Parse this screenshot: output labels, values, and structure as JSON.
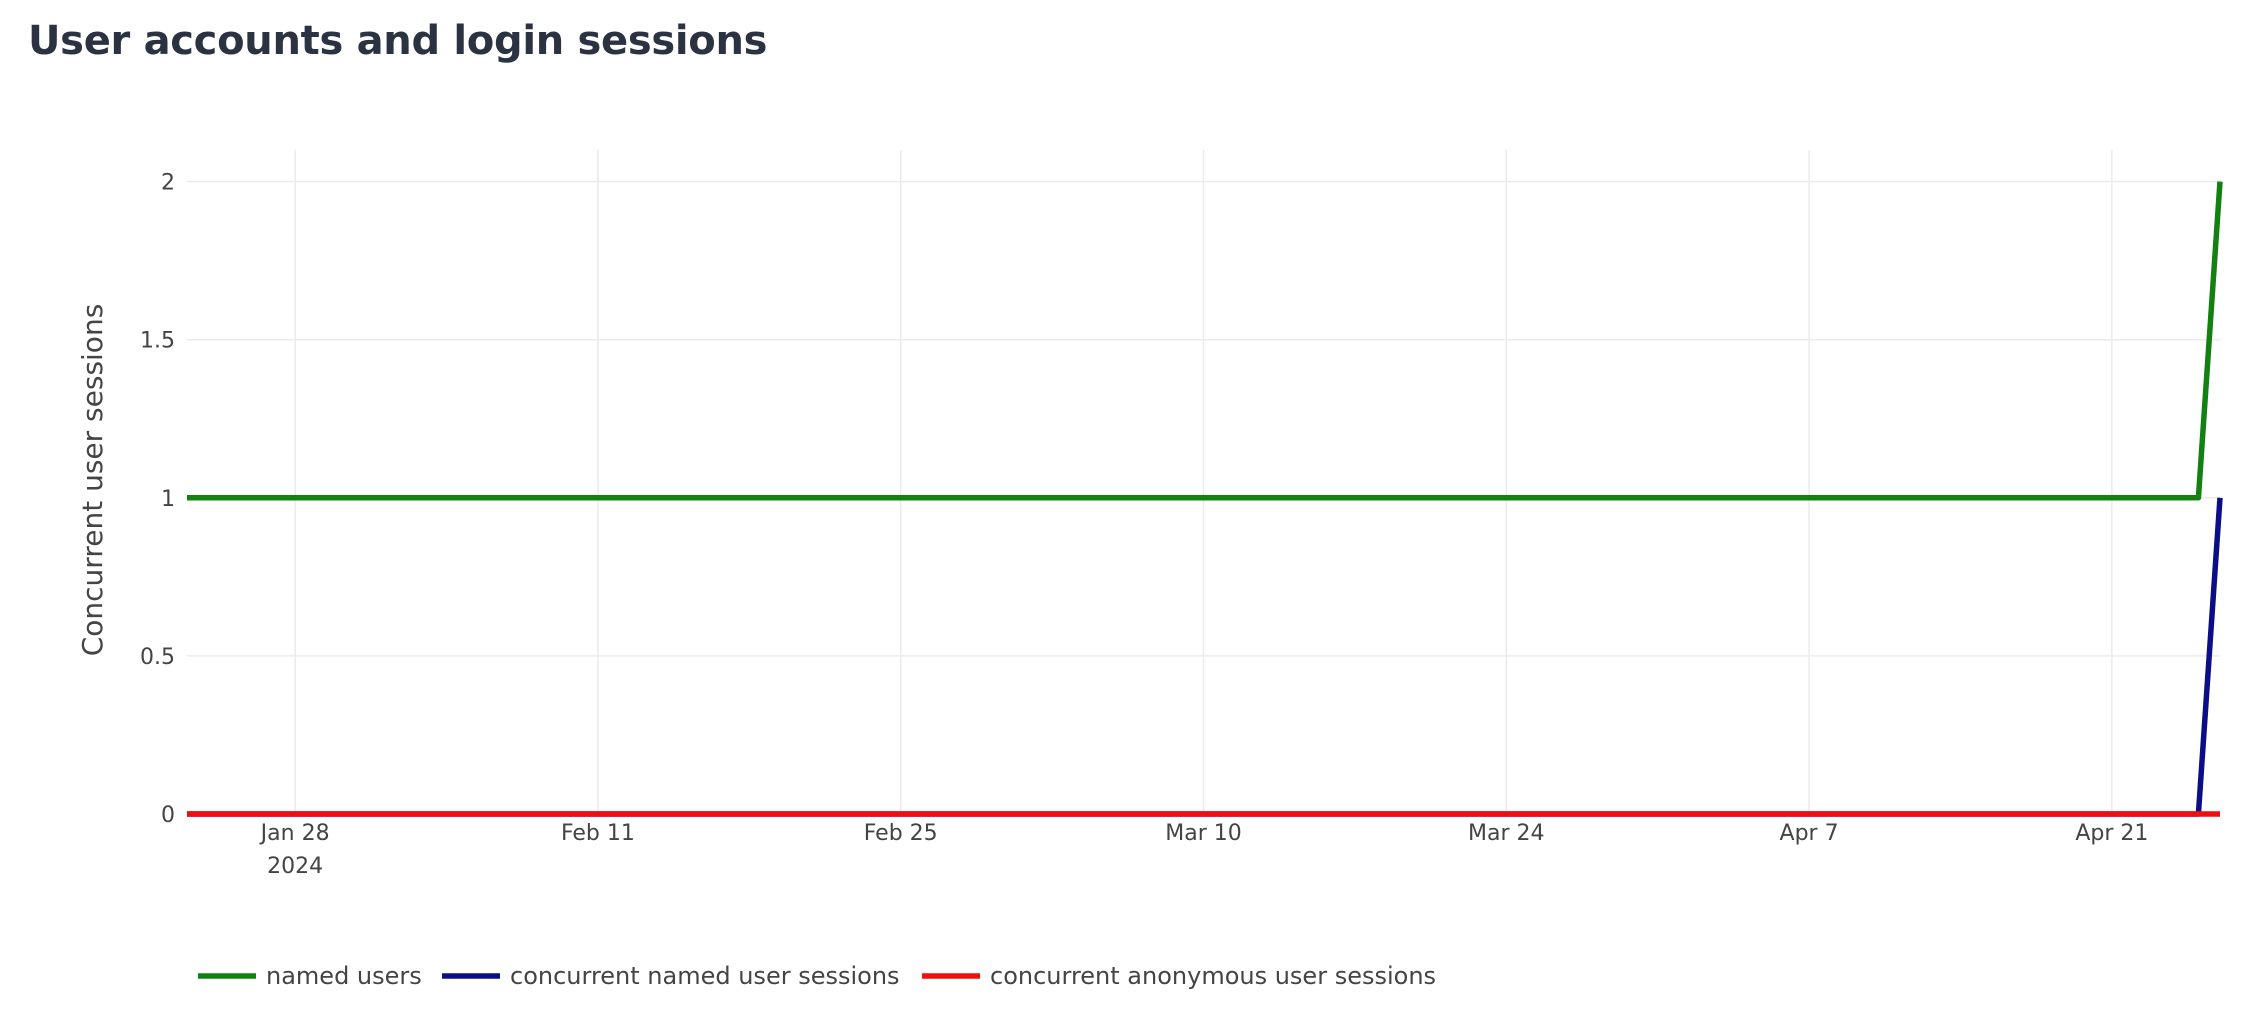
{
  "page": {
    "title": "User accounts and login sessions"
  },
  "chart_data": {
    "type": "line",
    "title": "User accounts and login sessions",
    "xlabel": "",
    "ylabel": "Concurrent user sessions",
    "x_type": "date",
    "x_range": [
      "2024-01-23",
      "2024-04-26"
    ],
    "ylim": [
      0,
      2.1
    ],
    "grid": true,
    "legend_position": "bottom-left",
    "x_ticks": [
      {
        "value": "2024-01-28",
        "label": "Jan 28",
        "sublabel": "2024"
      },
      {
        "value": "2024-02-11",
        "label": "Feb 11"
      },
      {
        "value": "2024-02-25",
        "label": "Feb 25"
      },
      {
        "value": "2024-03-10",
        "label": "Mar 10"
      },
      {
        "value": "2024-03-24",
        "label": "Mar 24"
      },
      {
        "value": "2024-04-07",
        "label": "Apr 7"
      },
      {
        "value": "2024-04-21",
        "label": "Apr 21"
      }
    ],
    "y_ticks": [
      {
        "value": 0,
        "label": "0"
      },
      {
        "value": 0.5,
        "label": "0.5"
      },
      {
        "value": 1,
        "label": "1"
      },
      {
        "value": 1.5,
        "label": "1.5"
      },
      {
        "value": 2,
        "label": "2"
      }
    ],
    "series": [
      {
        "name": "named users",
        "color": "#138012",
        "x": [
          "2024-01-23",
          "2024-04-25",
          "2024-04-26"
        ],
        "y": [
          1,
          1,
          2
        ]
      },
      {
        "name": "concurrent named user sessions",
        "color": "#0b0e87",
        "x": [
          "2024-01-23",
          "2024-04-25",
          "2024-04-26"
        ],
        "y": [
          0,
          0,
          1
        ]
      },
      {
        "name": "concurrent anonymous user sessions",
        "color": "#ee0f0f",
        "x": [
          "2024-01-23",
          "2024-04-26"
        ],
        "y": [
          0,
          0
        ]
      }
    ]
  }
}
